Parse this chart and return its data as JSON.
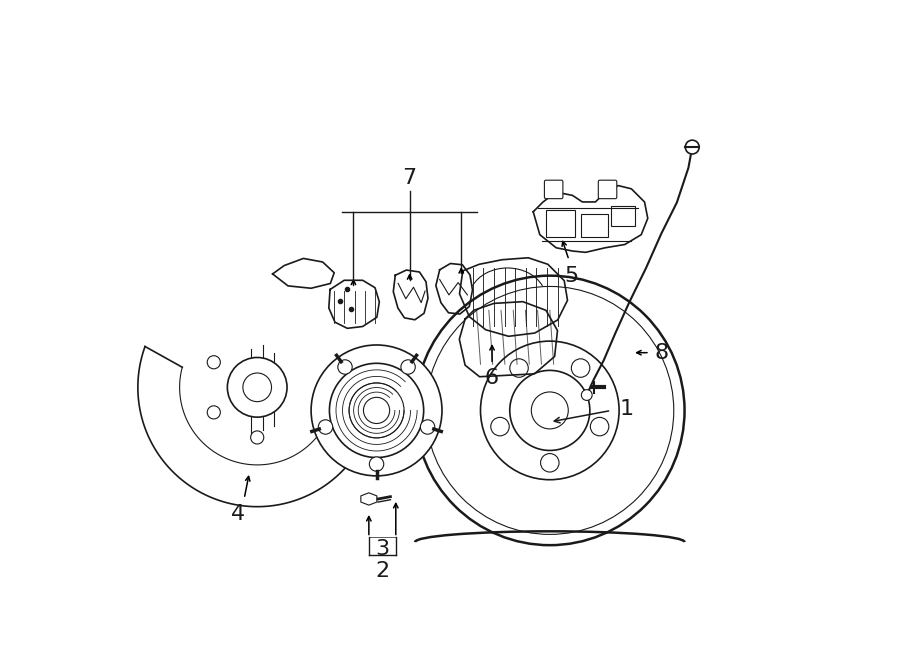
{
  "bg_color": "#ffffff",
  "line_color": "#1a1a1a",
  "figsize": [
    9.0,
    6.61
  ],
  "dpi": 100
}
